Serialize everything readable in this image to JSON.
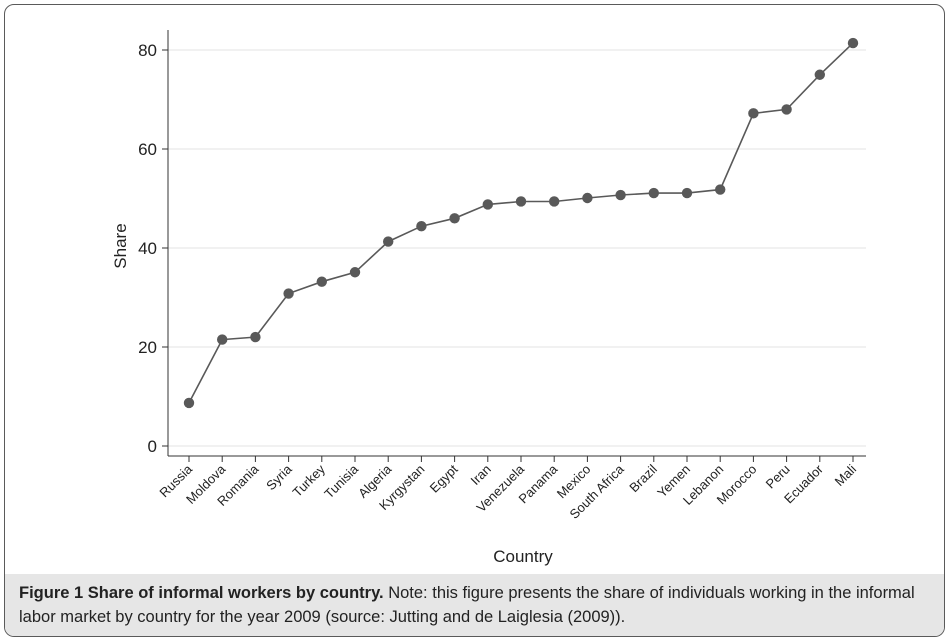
{
  "chart_data": {
    "type": "line",
    "xlabel": "Country",
    "ylabel": "Share",
    "ylim": [
      0,
      82
    ],
    "yticks": [
      0,
      20,
      40,
      60,
      80
    ],
    "categories": [
      "Russia",
      "Moldova",
      "Romania",
      "Syria",
      "Turkey",
      "Tunisia",
      "Algeria",
      "Kyrgystan",
      "Egypt",
      "Iran",
      "Venezuela",
      "Panama",
      "Mexico",
      "South Africa",
      "Brazil",
      "Yemen",
      "Lebanon",
      "Morocco",
      "Peru",
      "Ecuador",
      "Mali"
    ],
    "values": [
      8.7,
      21.5,
      22.0,
      30.8,
      33.2,
      35.1,
      41.3,
      44.4,
      46.0,
      48.8,
      49.4,
      49.4,
      50.1,
      50.7,
      51.1,
      51.1,
      51.8,
      67.2,
      68.0,
      75.0,
      81.4
    ],
    "grid": true,
    "legend": "none",
    "line_color": "#595959",
    "marker_color": "#595959"
  },
  "caption": {
    "label": "Figure 1 Share of informal workers by country.",
    "text": " Note: this figure presents the share of individuals working in the informal labor market by country for the year 2009 (source: Jutting and de Laiglesia (2009))."
  }
}
